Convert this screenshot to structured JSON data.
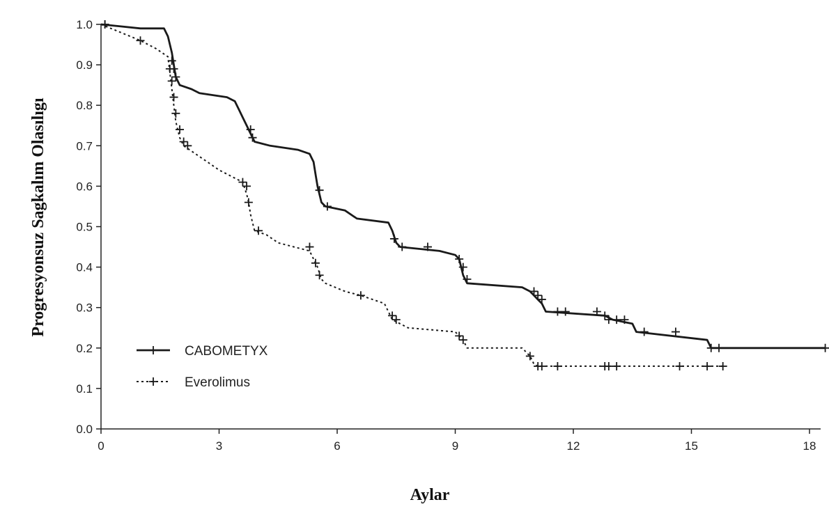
{
  "chart_data": {
    "type": "line",
    "title": "",
    "xlabel": "Aylar",
    "ylabel": "Progresyonsuz Sagkalım Olasılıgı",
    "xlim": [
      0,
      18.5
    ],
    "ylim": [
      0,
      1.0
    ],
    "xticks": [
      0,
      3,
      6,
      9,
      12,
      15,
      18
    ],
    "yticks": [
      "0.0",
      "0.1",
      "0.2",
      "0.3",
      "0.4",
      "0.5",
      "0.6",
      "0.7",
      "0.8",
      "0.9",
      "1.0"
    ],
    "grid": false,
    "legend_position": "bottom-left",
    "series": [
      {
        "name": "CABOMETYX",
        "style": "solid",
        "color": "#1a1a1a",
        "step_points": [
          [
            0,
            1.0
          ],
          [
            0.5,
            0.995
          ],
          [
            1.0,
            0.99
          ],
          [
            1.6,
            0.99
          ],
          [
            1.7,
            0.97
          ],
          [
            1.8,
            0.93
          ],
          [
            1.85,
            0.9
          ],
          [
            1.9,
            0.87
          ],
          [
            2.0,
            0.85
          ],
          [
            2.3,
            0.84
          ],
          [
            2.5,
            0.83
          ],
          [
            3.2,
            0.82
          ],
          [
            3.4,
            0.81
          ],
          [
            3.5,
            0.79
          ],
          [
            3.6,
            0.77
          ],
          [
            3.7,
            0.75
          ],
          [
            3.8,
            0.73
          ],
          [
            3.9,
            0.71
          ],
          [
            4.3,
            0.7
          ],
          [
            5.0,
            0.69
          ],
          [
            5.3,
            0.68
          ],
          [
            5.4,
            0.66
          ],
          [
            5.45,
            0.63
          ],
          [
            5.5,
            0.6
          ],
          [
            5.55,
            0.58
          ],
          [
            5.6,
            0.56
          ],
          [
            5.7,
            0.55
          ],
          [
            6.2,
            0.54
          ],
          [
            6.5,
            0.52
          ],
          [
            7.3,
            0.51
          ],
          [
            7.4,
            0.49
          ],
          [
            7.5,
            0.46
          ],
          [
            7.6,
            0.45
          ],
          [
            8.6,
            0.44
          ],
          [
            9.0,
            0.43
          ],
          [
            9.1,
            0.42
          ],
          [
            9.15,
            0.4
          ],
          [
            9.2,
            0.38
          ],
          [
            9.3,
            0.36
          ],
          [
            10.7,
            0.35
          ],
          [
            10.9,
            0.34
          ],
          [
            11.0,
            0.33
          ],
          [
            11.1,
            0.32
          ],
          [
            11.2,
            0.31
          ],
          [
            11.3,
            0.29
          ],
          [
            12.8,
            0.28
          ],
          [
            13.0,
            0.27
          ],
          [
            13.5,
            0.26
          ],
          [
            13.6,
            0.24
          ],
          [
            15.4,
            0.22
          ],
          [
            15.5,
            0.2
          ],
          [
            18.4,
            0.2
          ]
        ],
        "censor": [
          [
            0.1,
            1.0
          ],
          [
            1.8,
            0.91
          ],
          [
            1.85,
            0.89
          ],
          [
            1.9,
            0.87
          ],
          [
            3.8,
            0.74
          ],
          [
            3.85,
            0.72
          ],
          [
            5.55,
            0.59
          ],
          [
            5.75,
            0.55
          ],
          [
            7.45,
            0.47
          ],
          [
            7.65,
            0.45
          ],
          [
            8.3,
            0.45
          ],
          [
            9.1,
            0.42
          ],
          [
            9.2,
            0.4
          ],
          [
            9.3,
            0.37
          ],
          [
            11.0,
            0.34
          ],
          [
            11.1,
            0.33
          ],
          [
            11.2,
            0.32
          ],
          [
            11.6,
            0.29
          ],
          [
            11.8,
            0.29
          ],
          [
            12.6,
            0.29
          ],
          [
            12.8,
            0.28
          ],
          [
            12.9,
            0.27
          ],
          [
            13.1,
            0.27
          ],
          [
            13.3,
            0.27
          ],
          [
            13.8,
            0.24
          ],
          [
            14.6,
            0.24
          ],
          [
            15.5,
            0.2
          ],
          [
            15.7,
            0.2
          ],
          [
            18.4,
            0.2
          ]
        ]
      },
      {
        "name": "Everolimus",
        "style": "dotted",
        "color": "#1a1a1a",
        "step_points": [
          [
            0,
            1.0
          ],
          [
            0.5,
            0.98
          ],
          [
            1.0,
            0.96
          ],
          [
            1.4,
            0.94
          ],
          [
            1.7,
            0.92
          ],
          [
            1.75,
            0.88
          ],
          [
            1.8,
            0.84
          ],
          [
            1.85,
            0.8
          ],
          [
            1.9,
            0.76
          ],
          [
            2.0,
            0.72
          ],
          [
            2.1,
            0.7
          ],
          [
            2.4,
            0.68
          ],
          [
            2.7,
            0.66
          ],
          [
            3.0,
            0.64
          ],
          [
            3.4,
            0.62
          ],
          [
            3.6,
            0.61
          ],
          [
            3.7,
            0.58
          ],
          [
            3.75,
            0.56
          ],
          [
            3.8,
            0.53
          ],
          [
            3.85,
            0.51
          ],
          [
            3.9,
            0.49
          ],
          [
            4.2,
            0.48
          ],
          [
            4.5,
            0.46
          ],
          [
            4.9,
            0.45
          ],
          [
            5.3,
            0.44
          ],
          [
            5.4,
            0.42
          ],
          [
            5.5,
            0.4
          ],
          [
            5.6,
            0.37
          ],
          [
            5.7,
            0.36
          ],
          [
            6.2,
            0.34
          ],
          [
            6.6,
            0.33
          ],
          [
            7.2,
            0.31
          ],
          [
            7.3,
            0.29
          ],
          [
            7.4,
            0.27
          ],
          [
            7.8,
            0.25
          ],
          [
            9.0,
            0.24
          ],
          [
            9.1,
            0.23
          ],
          [
            9.2,
            0.22
          ],
          [
            9.3,
            0.2
          ],
          [
            10.7,
            0.2
          ],
          [
            10.9,
            0.18
          ],
          [
            11.0,
            0.16
          ],
          [
            11.1,
            0.155
          ],
          [
            15.8,
            0.155
          ]
        ],
        "censor": [
          [
            0.1,
            1.0
          ],
          [
            1.0,
            0.96
          ],
          [
            1.75,
            0.89
          ],
          [
            1.8,
            0.86
          ],
          [
            1.85,
            0.82
          ],
          [
            1.9,
            0.78
          ],
          [
            2.0,
            0.74
          ],
          [
            2.1,
            0.71
          ],
          [
            2.2,
            0.7
          ],
          [
            3.6,
            0.61
          ],
          [
            3.7,
            0.6
          ],
          [
            3.75,
            0.56
          ],
          [
            4.0,
            0.49
          ],
          [
            5.3,
            0.45
          ],
          [
            5.45,
            0.41
          ],
          [
            5.55,
            0.38
          ],
          [
            6.6,
            0.33
          ],
          [
            7.4,
            0.28
          ],
          [
            7.5,
            0.27
          ],
          [
            9.1,
            0.23
          ],
          [
            9.2,
            0.22
          ],
          [
            10.9,
            0.18
          ],
          [
            11.1,
            0.155
          ],
          [
            11.2,
            0.155
          ],
          [
            11.6,
            0.155
          ],
          [
            12.8,
            0.155
          ],
          [
            12.9,
            0.155
          ],
          [
            13.1,
            0.155
          ],
          [
            14.7,
            0.155
          ],
          [
            15.4,
            0.155
          ],
          [
            15.8,
            0.155
          ]
        ]
      }
    ]
  }
}
